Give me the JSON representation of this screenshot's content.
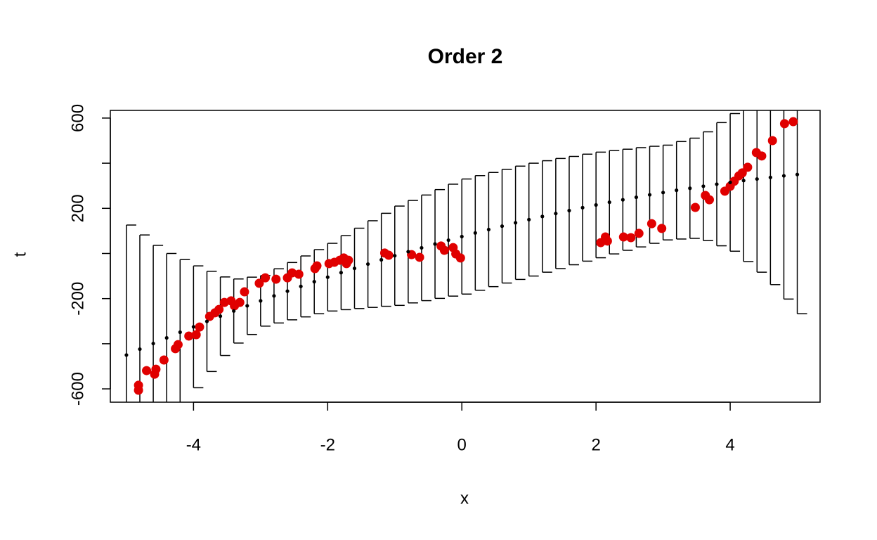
{
  "chart_data": {
    "type": "scatter",
    "title": "Order 2",
    "xlabel": "x",
    "ylabel": "t",
    "xlim": [
      -5.24,
      5.34
    ],
    "ylim": [
      -659,
      634
    ],
    "xticks": [
      -4,
      -2,
      0,
      2,
      4
    ],
    "yticks": [
      -600,
      {
        "value": -400
      },
      -200,
      {
        "value": 0
      },
      200,
      {
        "value": 400
      },
      600
    ],
    "points": {
      "color": "#e00000",
      "x": [
        -4.82,
        -4.82,
        -4.7,
        -4.58,
        -4.56,
        -4.44,
        -4.27,
        -4.23,
        -4.07,
        -3.96,
        -3.91,
        -3.76,
        -3.68,
        -3.62,
        -3.54,
        -3.44,
        -3.39,
        -3.31,
        -3.24,
        -3.02,
        -2.93,
        -2.77,
        -2.6,
        -2.53,
        -2.43,
        -2.19,
        -2.16,
        -1.98,
        -1.9,
        -1.82,
        -1.76,
        -1.72,
        -1.69,
        -1.15,
        -1.09,
        -0.75,
        -0.63,
        -0.31,
        -0.26,
        -0.13,
        -0.09,
        -0.02,
        2.07,
        2.14,
        2.17,
        2.41,
        2.52,
        2.64,
        2.83,
        2.98,
        3.48,
        3.63,
        3.69,
        3.92,
        4.0,
        4.06,
        4.13,
        4.18,
        4.26,
        4.39,
        4.47,
        4.63,
        4.81,
        4.94
      ],
      "values": [
        -606,
        -584,
        -519,
        -535,
        -513,
        -472,
        -422,
        -404,
        -366,
        -360,
        -326,
        -279,
        -263,
        -248,
        -217,
        -210,
        -232,
        -217,
        -170,
        -132,
        -108,
        -114,
        -108,
        -86,
        -92,
        -67,
        -55,
        -45,
        -39,
        -30,
        -20,
        -45,
        -30,
        2,
        -8,
        -5,
        -17,
        33,
        14,
        26,
        -2,
        -20,
        48,
        73,
        55,
        73,
        70,
        89,
        132,
        111,
        204,
        257,
        238,
        276,
        298,
        320,
        344,
        357,
        382,
        447,
        432,
        500,
        575,
        584
      ]
    },
    "fit": {
      "color": "#000000",
      "x": [
        -5,
        -4.8,
        -4.6,
        -4.4,
        -4.2,
        -4,
        -3.8,
        -3.6,
        -3.4,
        -3.2,
        -3,
        -2.8,
        -2.6,
        -2.4,
        -2.2,
        -2,
        -1.8,
        -1.6,
        -1.4,
        -1.2,
        -1,
        -0.8,
        -0.6,
        -0.4,
        -0.2,
        0,
        0.2,
        0.4,
        0.6,
        0.8,
        1,
        1.2,
        1.4,
        1.6,
        1.8,
        2,
        2.2,
        2.4,
        2.6,
        2.8,
        3,
        3.2,
        3.4,
        3.6,
        3.8,
        4,
        4.2,
        4.4,
        4.6,
        4.8,
        5
      ],
      "values": [
        -450,
        -424,
        -399,
        -374,
        -349,
        -325,
        -301,
        -278,
        -255,
        -232,
        -210,
        -188,
        -167,
        -146,
        -125,
        -105,
        -85,
        -66,
        -47,
        -28,
        -10,
        8,
        25,
        42,
        59,
        75,
        91,
        106,
        121,
        136,
        150,
        164,
        177,
        190,
        203,
        215,
        227,
        238,
        249,
        260,
        270,
        280,
        289,
        298,
        307,
        315,
        323,
        330,
        337,
        344,
        350
      ],
      "errors": [
        576,
        506,
        435,
        374,
        322,
        270,
        222,
        174,
        142,
        127,
        112,
        120,
        127,
        135,
        142,
        150,
        164,
        178,
        192,
        206,
        220,
        227,
        234,
        241,
        248,
        255,
        254,
        253,
        252,
        251,
        250,
        247,
        244,
        240,
        237,
        234,
        229,
        224,
        220,
        215,
        210,
        216,
        222,
        241,
        273,
        305,
        359,
        413,
        475,
        546,
        617
      ]
    }
  }
}
